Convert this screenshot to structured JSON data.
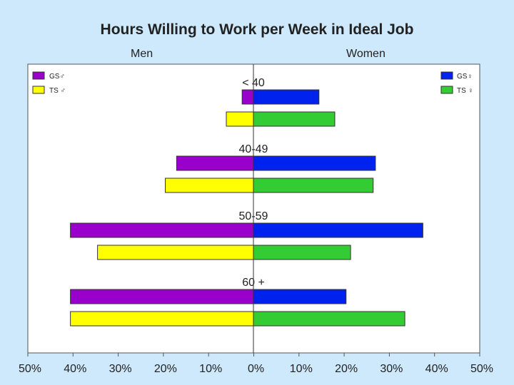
{
  "chart_data": {
    "type": "bar",
    "orientation": "horizontal-diverging",
    "title": "Hours Willing to Work per Week in Ideal Job",
    "left_label": "Men",
    "right_label": "Women",
    "categories": [
      "< 40",
      "40-49",
      "50-59",
      "60 +"
    ],
    "series": [
      {
        "name": "GS♂",
        "side": "left",
        "color": "#9900cc",
        "values": [
          2.5,
          17,
          40.5,
          40.5
        ]
      },
      {
        "name": "TS ♂",
        "side": "left",
        "color": "#ffff00",
        "values": [
          6,
          19.5,
          34.5,
          40.5
        ]
      },
      {
        "name": "GS♀",
        "side": "right",
        "color": "#0022ee",
        "values": [
          14.5,
          27,
          37.5,
          20.5
        ]
      },
      {
        "name": "TS ♀",
        "side": "right",
        "color": "#33cc33",
        "values": [
          18,
          26.5,
          21.5,
          33.5
        ]
      }
    ],
    "xlim": [
      -50,
      50
    ],
    "xticks": [
      "50%",
      "40%",
      "30%",
      "20%",
      "10%",
      "0%",
      "10%",
      "20%",
      "30%",
      "40%",
      "50%"
    ],
    "legend": {
      "left": "top-left",
      "right": "top-right"
    }
  }
}
